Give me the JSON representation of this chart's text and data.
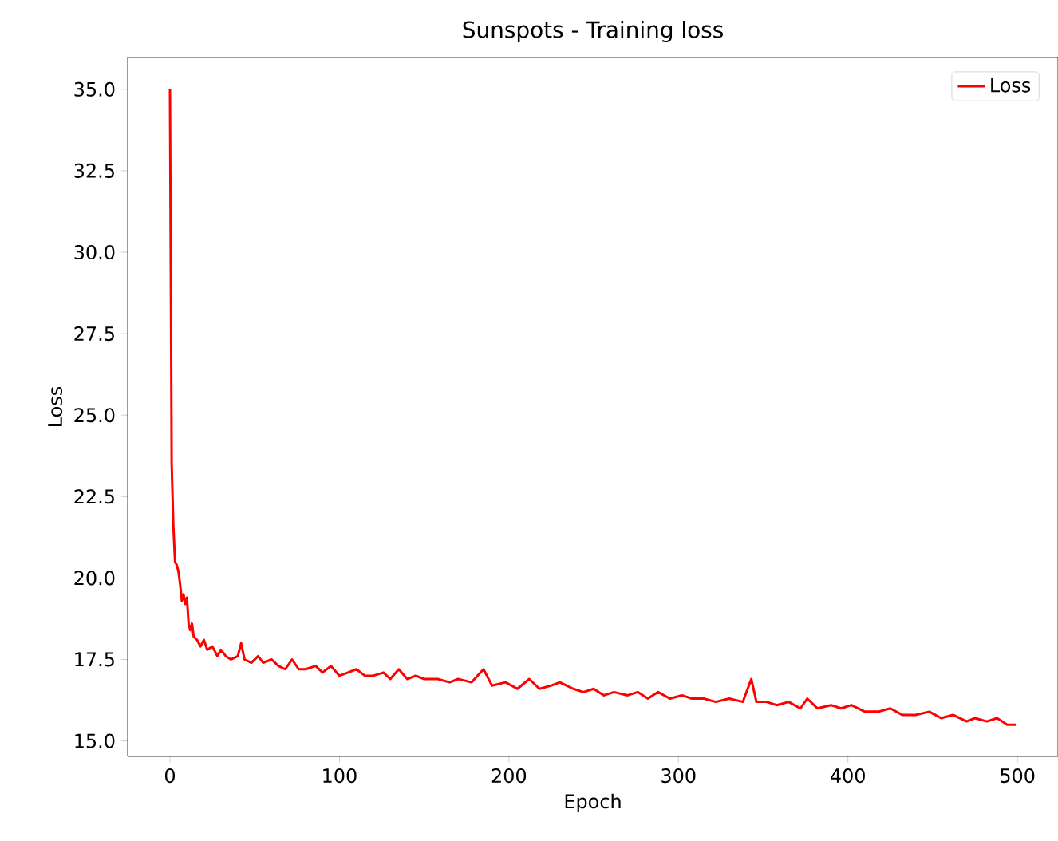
{
  "chart_data": {
    "type": "line",
    "title": "Sunspots - Training loss",
    "xlabel": "Epoch",
    "ylabel": "Loss",
    "xlim": [
      -24.95,
      523.95
    ],
    "ylim": [
      14.525,
      35.975
    ],
    "xticks": [
      0,
      100,
      200,
      300,
      400,
      500
    ],
    "yticks": [
      {
        "value": 15,
        "label": "15.0"
      },
      {
        "value": 17.5,
        "label": "17.5"
      },
      {
        "value": 20,
        "label": "20.0"
      },
      {
        "value": 22.5,
        "label": "22.5"
      },
      {
        "value": 25,
        "label": "25.0"
      },
      {
        "value": 27.5,
        "label": "27.5"
      },
      {
        "value": 30,
        "label": "30.0"
      },
      {
        "value": 32.5,
        "label": "32.5"
      },
      {
        "value": 35,
        "label": "35.0"
      }
    ],
    "legend": "top right",
    "grid": false,
    "marker": "none",
    "line_style": "solid",
    "x": [
      0,
      1,
      2,
      3,
      4,
      5,
      6,
      7,
      8,
      9,
      10,
      11,
      12,
      13,
      14,
      16,
      18,
      20,
      22,
      25,
      28,
      30,
      33,
      36,
      40,
      42,
      44,
      48,
      52,
      55,
      60,
      64,
      68,
      72,
      76,
      80,
      86,
      90,
      95,
      100,
      105,
      110,
      115,
      120,
      126,
      130,
      135,
      140,
      145,
      150,
      158,
      165,
      170,
      178,
      185,
      190,
      198,
      205,
      212,
      218,
      225,
      230,
      238,
      244,
      250,
      256,
      262,
      270,
      276,
      282,
      288,
      295,
      302,
      308,
      315,
      322,
      330,
      338,
      343,
      346,
      352,
      358,
      365,
      372,
      376,
      382,
      390,
      396,
      402,
      410,
      418,
      425,
      432,
      440,
      448,
      455,
      462,
      470,
      475,
      482,
      488,
      494,
      499
    ],
    "series": [
      {
        "name": "Loss",
        "color": "#ff0000",
        "values": [
          35.0,
          23.5,
          21.6,
          20.5,
          20.4,
          20.2,
          19.8,
          19.3,
          19.5,
          19.2,
          19.4,
          18.6,
          18.4,
          18.6,
          18.2,
          18.1,
          17.9,
          18.1,
          17.8,
          17.9,
          17.6,
          17.8,
          17.6,
          17.5,
          17.6,
          18.0,
          17.5,
          17.4,
          17.6,
          17.4,
          17.5,
          17.3,
          17.2,
          17.5,
          17.2,
          17.2,
          17.3,
          17.1,
          17.3,
          17.0,
          17.1,
          17.2,
          17.0,
          17.0,
          17.1,
          16.9,
          17.2,
          16.9,
          17.0,
          16.9,
          16.9,
          16.8,
          16.9,
          16.8,
          17.2,
          16.7,
          16.8,
          16.6,
          16.9,
          16.6,
          16.7,
          16.8,
          16.6,
          16.5,
          16.6,
          16.4,
          16.5,
          16.4,
          16.5,
          16.3,
          16.5,
          16.3,
          16.4,
          16.3,
          16.3,
          16.2,
          16.3,
          16.2,
          16.9,
          16.2,
          16.2,
          16.1,
          16.2,
          16.0,
          16.3,
          16.0,
          16.1,
          16.0,
          16.1,
          15.9,
          15.9,
          16.0,
          15.8,
          15.8,
          15.9,
          15.7,
          15.8,
          15.6,
          15.7,
          15.6,
          15.7,
          15.5,
          15.5
        ]
      }
    ]
  }
}
